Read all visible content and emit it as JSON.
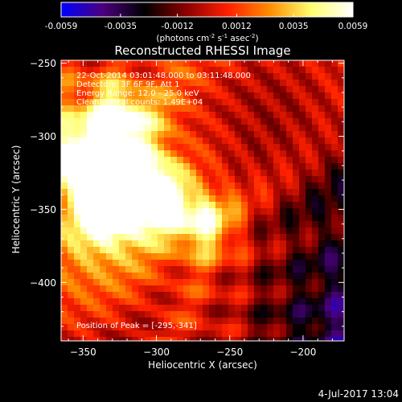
{
  "colorbar": {
    "ticks": [
      "-0.0059",
      "-0.0035",
      "-0.0012",
      "0.0012",
      "0.0035",
      "0.0059"
    ],
    "tick_values": [
      -0.0059,
      -0.0035,
      -0.0012,
      0.0012,
      0.0035,
      0.0059
    ],
    "range": [
      -0.0059,
      0.0059
    ],
    "units_prefix": "(photons cm",
    "units_sup1": "-2",
    "units_mid1": " s",
    "units_sup2": "-1",
    "units_mid2": " asec",
    "units_sup3": "-2",
    "units_suffix": ")",
    "colors": [
      "#0000ff",
      "#4b007f",
      "#000000",
      "#8b0000",
      "#ff2000",
      "#ff8c00",
      "#ffff70",
      "#ffffff"
    ]
  },
  "chart_data": {
    "type": "heatmap",
    "title": "Reconstructed RHESSI Image",
    "xlabel": "Heliocentric X (arcsec)",
    "ylabel": "Heliocentric Y (arcsec)",
    "xlim": [
      -365,
      -172
    ],
    "ylim": [
      -440,
      -248
    ],
    "x_ticks": [
      -350,
      -300,
      -250,
      -200
    ],
    "y_ticks": [
      -250,
      -300,
      -350,
      -400
    ],
    "x_tick_labels": [
      "−350",
      "−300",
      "−250",
      "−200"
    ],
    "y_tick_labels": [
      "−250",
      "−300",
      "−350",
      "−400"
    ],
    "annotations": [
      "22-Oct-2014 03:01:48.000 to 03:11:48.000",
      "Detectors: 3F 6F 9F, Att 1",
      "Energy Range: 12.0 - 25.0 keV",
      "Clean    Total counts: 1.49E+04"
    ],
    "peak_label": "Position of Peak = [-295,-341]",
    "peak": [
      -295,
      -341
    ],
    "sources": [
      {
        "x": -322,
        "y": -333,
        "value": 0.0059
      },
      {
        "x": -300,
        "y": -341,
        "value": 0.0055
      },
      {
        "x": -349,
        "y": -314,
        "value": 0.0049
      },
      {
        "x": -326,
        "y": -289,
        "value": 0.0046
      },
      {
        "x": -338,
        "y": -352,
        "value": 0.0042
      },
      {
        "x": -267,
        "y": -361,
        "value": 0.0037
      }
    ]
  },
  "footer": {
    "date": "4-Jul-2017 13:04"
  }
}
